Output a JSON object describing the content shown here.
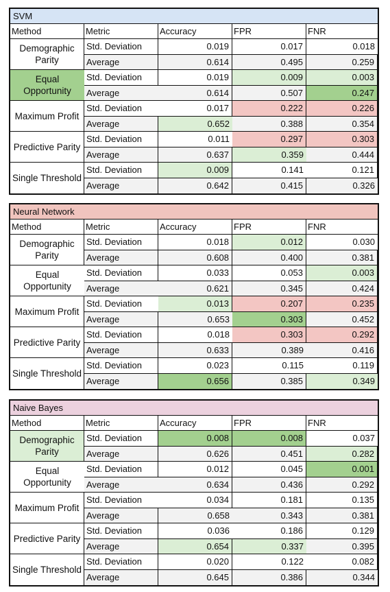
{
  "columns": [
    "Method",
    "Metric",
    "Accuracy",
    "FPR",
    "FNR"
  ],
  "colors": {
    "svm_title": "#d6e4f5",
    "nn_title": "#f0c4be",
    "nb_title": "#ecd1de",
    "light_green": "#dbeed5",
    "dark_green": "#a3d08f",
    "light_red": "#f3c6c3",
    "std_row": "#ffffff",
    "avg_row": "#f2f2f2"
  },
  "tables": [
    {
      "title": "SVM",
      "rows": [
        {
          "method": "Demographic Parity",
          "method_hl": "none",
          "std": {
            "label": "Std. Deviation",
            "acc": "0.019",
            "fpr": "0.017",
            "fnr": "0.018",
            "hl": [
              "none",
              "none",
              "none"
            ]
          },
          "avg": {
            "label": "Average",
            "acc": "0.614",
            "fpr": "0.495",
            "fnr": "0.259",
            "hl": [
              "none",
              "none",
              "none"
            ]
          }
        },
        {
          "method": "Equal Opportunity",
          "method_hl": "dark_green",
          "std": {
            "label": "Std. Deviation",
            "acc": "0.019",
            "fpr": "0.009",
            "fnr": "0.003",
            "hl": [
              "none",
              "light_green",
              "light_green"
            ]
          },
          "avg": {
            "label": "Average",
            "acc": "0.614",
            "fpr": "0.507",
            "fnr": "0.247",
            "hl": [
              "none",
              "none",
              "dark_green"
            ]
          }
        },
        {
          "method": "Maximum Profit",
          "method_hl": "none",
          "std": {
            "label": "Std. Deviation",
            "acc": "0.017",
            "fpr": "0.222",
            "fnr": "0.226",
            "hl": [
              "none",
              "light_red",
              "light_red"
            ]
          },
          "avg": {
            "label": "Average",
            "acc": "0.652",
            "fpr": "0.388",
            "fnr": "0.354",
            "hl": [
              "light_green",
              "none",
              "none"
            ]
          }
        },
        {
          "method": "Predictive Parity",
          "method_hl": "none",
          "std": {
            "label": "Std. Deviation",
            "acc": "0.011",
            "fpr": "0.297",
            "fnr": "0.303",
            "hl": [
              "none",
              "light_red",
              "light_red"
            ]
          },
          "avg": {
            "label": "Average",
            "acc": "0.637",
            "fpr": "0.359",
            "fnr": "0.444",
            "hl": [
              "none",
              "light_green",
              "none"
            ]
          }
        },
        {
          "method": "Single Threshold",
          "method_hl": "none",
          "std": {
            "label": "Std. Deviation",
            "acc": "0.009",
            "fpr": "0.141",
            "fnr": "0.121",
            "hl": [
              "light_green",
              "none",
              "none"
            ]
          },
          "avg": {
            "label": "Average",
            "acc": "0.642",
            "fpr": "0.415",
            "fnr": "0.326",
            "hl": [
              "none",
              "none",
              "none"
            ]
          }
        }
      ]
    },
    {
      "title": "Neural Network",
      "rows": [
        {
          "method": "Demographic Parity",
          "method_hl": "none",
          "std": {
            "label": "Std. Deviation",
            "acc": "0.018",
            "fpr": "0.012",
            "fnr": "0.030",
            "hl": [
              "none",
              "light_green",
              "none"
            ]
          },
          "avg": {
            "label": "Average",
            "acc": "0.608",
            "fpr": "0.400",
            "fnr": "0.381",
            "hl": [
              "none",
              "none",
              "none"
            ]
          }
        },
        {
          "method": "Equal Opportunity",
          "method_hl": "none",
          "std": {
            "label": "Std. Deviation",
            "acc": "0.033",
            "fpr": "0.053",
            "fnr": "0.003",
            "hl": [
              "none",
              "none",
              "light_green"
            ]
          },
          "avg": {
            "label": "Average",
            "acc": "0.621",
            "fpr": "0.345",
            "fnr": "0.424",
            "hl": [
              "none",
              "none",
              "none"
            ]
          }
        },
        {
          "method": "Maximum Profit",
          "method_hl": "none",
          "std": {
            "label": "Std. Deviation",
            "acc": "0.013",
            "fpr": "0.207",
            "fnr": "0.235",
            "hl": [
              "light_green",
              "light_red",
              "light_red"
            ]
          },
          "avg": {
            "label": "Average",
            "acc": "0.653",
            "fpr": "0.303",
            "fnr": "0.452",
            "hl": [
              "none",
              "dark_green",
              "none"
            ]
          }
        },
        {
          "method": "Predictive Parity",
          "method_hl": "none",
          "std": {
            "label": "Std. Deviation",
            "acc": "0.018",
            "fpr": "0.303",
            "fnr": "0.292",
            "hl": [
              "none",
              "light_red",
              "light_red"
            ]
          },
          "avg": {
            "label": "Average",
            "acc": "0.633",
            "fpr": "0.389",
            "fnr": "0.416",
            "hl": [
              "none",
              "none",
              "none"
            ]
          }
        },
        {
          "method": "Single Threshold",
          "method_hl": "none",
          "std": {
            "label": "Std. Deviation",
            "acc": "0.023",
            "fpr": "0.115",
            "fnr": "0.119",
            "hl": [
              "none",
              "none",
              "none"
            ]
          },
          "avg": {
            "label": "Average",
            "acc": "0.656",
            "fpr": "0.385",
            "fnr": "0.349",
            "hl": [
              "dark_green",
              "none",
              "light_green"
            ]
          }
        }
      ]
    },
    {
      "title": "Naive Bayes",
      "rows": [
        {
          "method": "Demographic Parity",
          "method_hl": "light_green",
          "std": {
            "label": "Std. Deviation",
            "acc": "0.008",
            "fpr": "0.008",
            "fnr": "0.037",
            "hl": [
              "dark_green",
              "dark_green",
              "none"
            ]
          },
          "avg": {
            "label": "Average",
            "acc": "0.626",
            "fpr": "0.451",
            "fnr": "0.282",
            "hl": [
              "none",
              "none",
              "light_green"
            ]
          }
        },
        {
          "method": "Equal Opportunity",
          "method_hl": "none",
          "std": {
            "label": "Std. Deviation",
            "acc": "0.012",
            "fpr": "0.045",
            "fnr": "0.001",
            "hl": [
              "none",
              "none",
              "dark_green"
            ]
          },
          "avg": {
            "label": "Average",
            "acc": "0.634",
            "fpr": "0.436",
            "fnr": "0.292",
            "hl": [
              "none",
              "none",
              "none"
            ]
          }
        },
        {
          "method": "Maximum Profit",
          "method_hl": "none",
          "std": {
            "label": "Std. Deviation",
            "acc": "0.034",
            "fpr": "0.181",
            "fnr": "0.135",
            "hl": [
              "none",
              "none",
              "none"
            ]
          },
          "avg": {
            "label": "Average",
            "acc": "0.658",
            "fpr": "0.343",
            "fnr": "0.381",
            "hl": [
              "none",
              "none",
              "none"
            ]
          }
        },
        {
          "method": "Predictive Parity",
          "method_hl": "none",
          "std": {
            "label": "Std. Deviation",
            "acc": "0.036",
            "fpr": "0.186",
            "fnr": "0.129",
            "hl": [
              "none",
              "none",
              "none"
            ]
          },
          "avg": {
            "label": "Average",
            "acc": "0.654",
            "fpr": "0.337",
            "fnr": "0.395",
            "hl": [
              "light_green",
              "light_green",
              "none"
            ]
          }
        },
        {
          "method": "Single Threshold",
          "method_hl": "none",
          "std": {
            "label": "Std. Deviation",
            "acc": "0.020",
            "fpr": "0.122",
            "fnr": "0.082",
            "hl": [
              "none",
              "none",
              "none"
            ]
          },
          "avg": {
            "label": "Average",
            "acc": "0.645",
            "fpr": "0.386",
            "fnr": "0.344",
            "hl": [
              "none",
              "none",
              "none"
            ]
          }
        }
      ]
    }
  ]
}
